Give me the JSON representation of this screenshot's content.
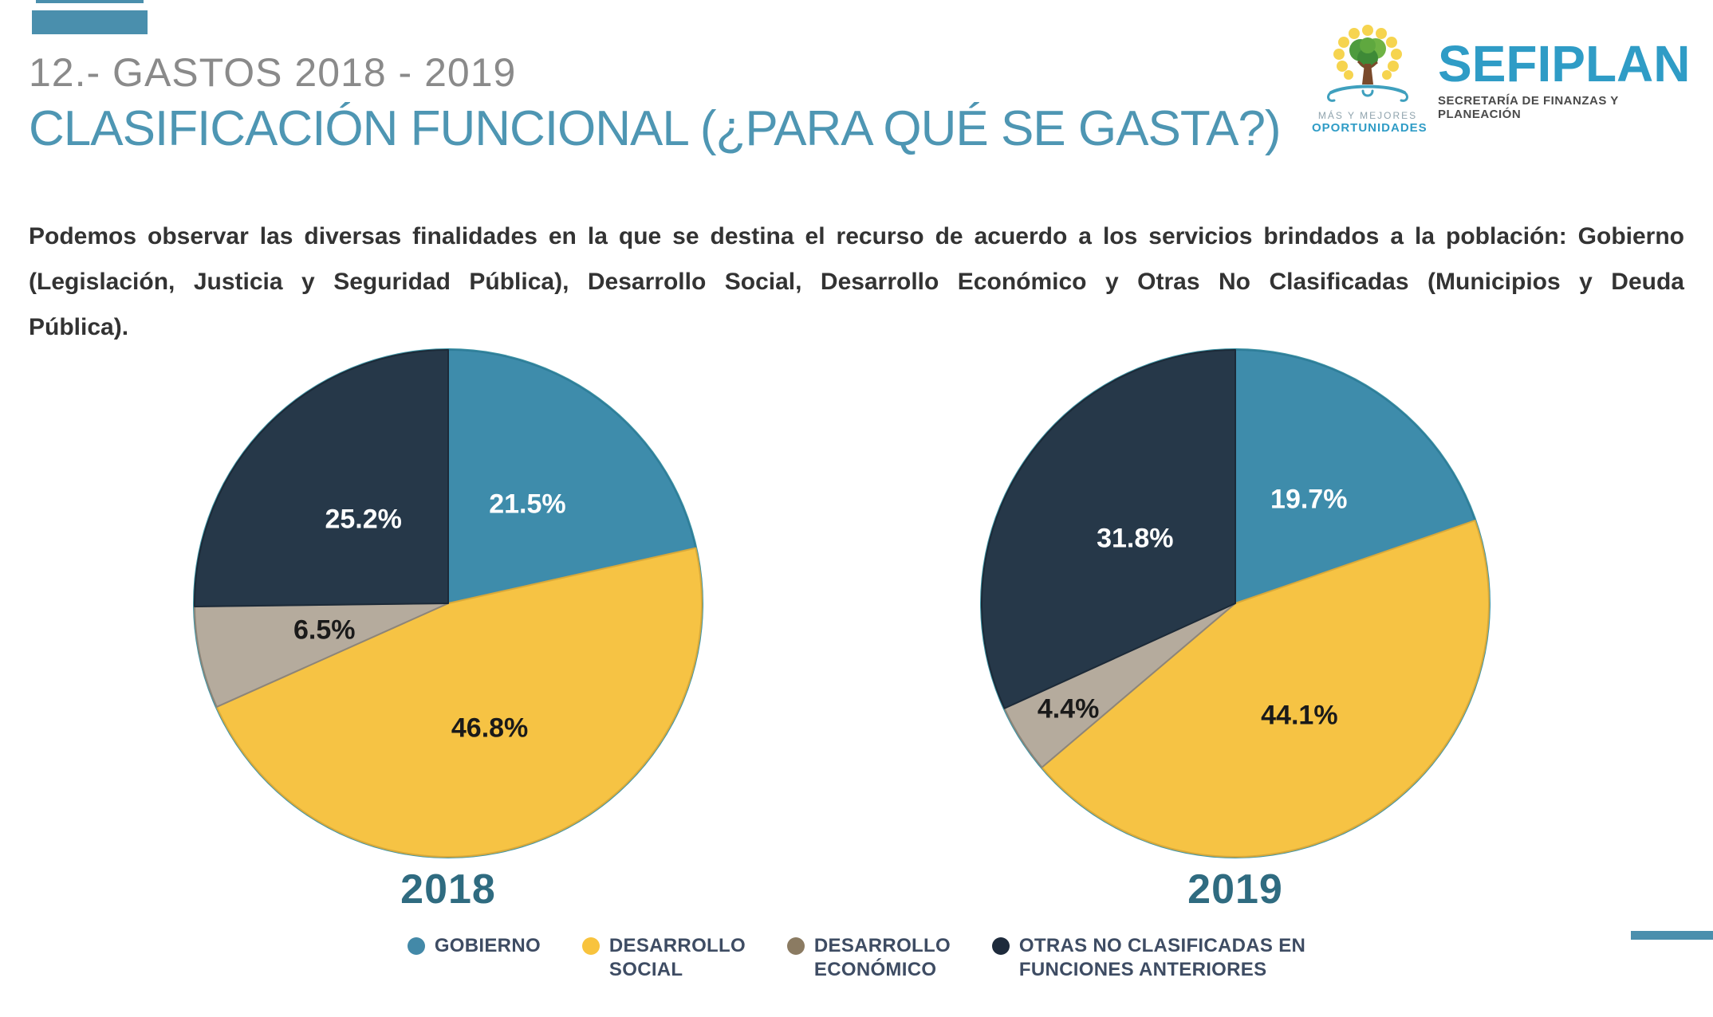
{
  "header": {
    "kicker": "12.- GASTOS 2018 - 2019",
    "title": "CLASIFICACIÓN FUNCIONAL (¿PARA QUÉ SE GASTA?)",
    "accent_color": "#4A8FAD",
    "kicker_color": "#8A8A8A",
    "title_color": "#4E96B3"
  },
  "logo": {
    "brand": "SEFIPLAN",
    "brand_subtitle": "SECRETARÍA DE FINANZAS Y PLANEACIÓN",
    "tagline_line1": "MÁS Y MEJORES",
    "tagline_line2": "OPORTUNIDADES",
    "brand_color": "#2F9CC6"
  },
  "intro": {
    "lines": [
      "Podemos observar las diversas finalidades en la que se destina el recurso de acuerdo a los servicios brindados a la población: Gobierno",
      "(Legislación, Justicia y Seguridad Pública), Desarrollo Social, Desarrollo Económico y Otras No Clasificadas (Municipios y Deuda",
      "Pública)."
    ]
  },
  "chart_data": [
    {
      "type": "pie",
      "title": "2018",
      "start_angle_deg": 0,
      "direction": "clockwise",
      "rim_color": "#3D94A5",
      "slices": [
        {
          "label": "GOBIERNO",
          "value": 21.5,
          "display": "21.5%",
          "color": "#3E8CAB",
          "stroke": "#2F7D99",
          "text_color": "#FFFFFF",
          "label_r": 0.5
        },
        {
          "label": "DESARROLLO SOCIAL",
          "value": 46.8,
          "display": "46.8%",
          "color": "#F6C344",
          "stroke": "#D9A93A",
          "text_color": "#1A1A1A",
          "label_r": 0.52
        },
        {
          "label": "DESARROLLO ECONÓMICO",
          "value": 6.5,
          "display": "6.5%",
          "color": "#B5AB9D",
          "stroke": "#8D8579",
          "text_color": "#1A1A1A",
          "label_r": 0.5
        },
        {
          "label": "OTRAS NO CLASIFICADAS EN FUNCIONES ANTERIORES",
          "value": 25.2,
          "display": "25.2%",
          "color": "#263849",
          "stroke": "#1C2A38",
          "text_color": "#FFFFFF",
          "label_r": 0.47
        }
      ]
    },
    {
      "type": "pie",
      "title": "2019",
      "start_angle_deg": 0,
      "direction": "clockwise",
      "rim_color": "#3D94A5",
      "slices": [
        {
          "label": "GOBIERNO",
          "value": 19.7,
          "display": "19.7%",
          "color": "#3E8CAB",
          "stroke": "#2F7D99",
          "text_color": "#FFFFFF",
          "label_r": 0.5
        },
        {
          "label": "DESARROLLO SOCIAL",
          "value": 44.1,
          "display": "44.1%",
          "color": "#F6C344",
          "stroke": "#D9A93A",
          "text_color": "#1A1A1A",
          "label_r": 0.51
        },
        {
          "label": "DESARROLLO ECONÓMICO",
          "value": 4.4,
          "display": "4.4%",
          "color": "#B5AB9D",
          "stroke": "#8D8579",
          "text_color": "#1A1A1A",
          "label_r": 0.78
        },
        {
          "label": "OTRAS NO CLASIFICADAS EN FUNCIONES ANTERIORES",
          "value": 31.8,
          "display": "31.8%",
          "color": "#263849",
          "stroke": "#1C2A38",
          "text_color": "#FFFFFF",
          "label_r": 0.47
        }
      ]
    }
  ],
  "legend": {
    "text_color": "#3E4C63",
    "items": [
      {
        "line1": "GOBIERNO",
        "dot_color": "#4389A8"
      },
      {
        "line1": "DESARROLLO",
        "line2": "SOCIAL",
        "dot_color": "#F8C33D"
      },
      {
        "line1": "DESARROLLO",
        "line2": "ECONÓMICO",
        "dot_color": "#8B7B62"
      },
      {
        "line1": "OTRAS NO CLASIFICADAS EN",
        "line2": "FUNCIONES ANTERIORES",
        "dot_color": "#1E2B3C"
      }
    ]
  },
  "footer": {
    "accent_color": "#4A8FAD"
  }
}
